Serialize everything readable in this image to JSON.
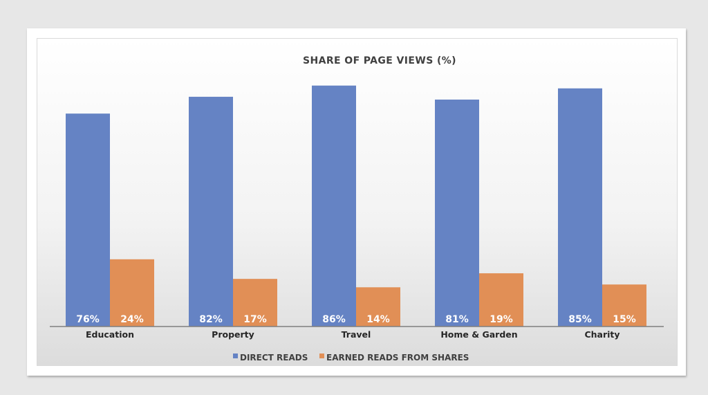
{
  "chart_data": {
    "type": "bar",
    "title": "SHARE OF PAGE VIEWS (%)",
    "categories": [
      "Education",
      "Property",
      "Travel",
      "Home & Garden",
      "Charity"
    ],
    "series": [
      {
        "name": "DIRECT READS",
        "values": [
          76,
          82,
          86,
          81,
          85
        ],
        "labels": [
          "76%",
          "82%",
          "86%",
          "81%",
          "85%"
        ],
        "color": "#6583c4"
      },
      {
        "name": "EARNED READS FROM SHARES",
        "values": [
          24,
          17,
          14,
          19,
          15
        ],
        "labels": [
          "24%",
          "17%",
          "14%",
          "19%",
          "15%"
        ],
        "color": "#e18f56"
      }
    ],
    "ylim": [
      0,
      100
    ],
    "grid": false,
    "legend": "bottom"
  }
}
